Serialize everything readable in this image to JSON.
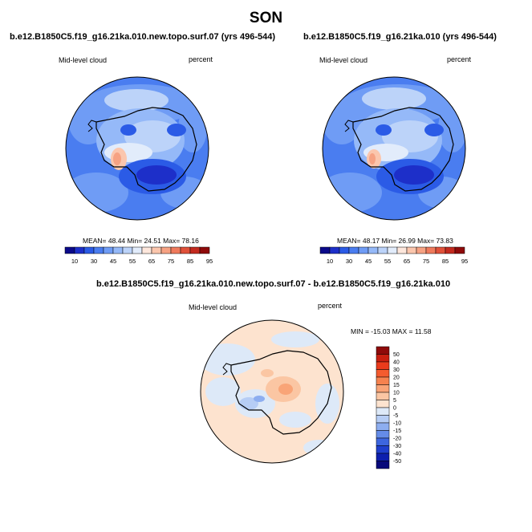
{
  "figure": {
    "season": "SON"
  },
  "panels": [
    {
      "case_title": "b.e12.B1850C5.f19_g16.21ka.010.new.topo.surf.07 (yrs 496-544)",
      "variable": "Mid-level cloud",
      "units": "percent",
      "stats": "MEAN=  48.44   Min=  24.51   Max=  78.16",
      "colorbar": {
        "labels": [
          "10",
          "30",
          "45",
          "55",
          "65",
          "75",
          "85",
          "95"
        ],
        "colors": [
          "#0b0a8a",
          "#1d2fc9",
          "#2b5be6",
          "#4a7df0",
          "#6f9cf5",
          "#95b9f8",
          "#bcd3f9",
          "#e2ecfb",
          "#fde7dc",
          "#fbc6ad",
          "#f6a283",
          "#ef7a5c",
          "#e0513a",
          "#c32a1f",
          "#8f0a0a"
        ]
      }
    },
    {
      "case_title": "b.e12.B1850C5.f19_g16.21ka.010 (yrs 496-544)",
      "variable": "Mid-level cloud",
      "units": "percent",
      "stats": "MEAN=  48.17   Min=  26.99   Max=  73.83",
      "colorbar": {
        "labels": [
          "10",
          "30",
          "45",
          "55",
          "65",
          "75",
          "85",
          "95"
        ],
        "colors": [
          "#0b0a8a",
          "#1d2fc9",
          "#2b5be6",
          "#4a7df0",
          "#6f9cf5",
          "#95b9f8",
          "#bcd3f9",
          "#e2ecfb",
          "#fde7dc",
          "#fbc6ad",
          "#f6a283",
          "#ef7a5c",
          "#e0513a",
          "#c32a1f",
          "#8f0a0a"
        ]
      }
    }
  ],
  "difference": {
    "title": "b.e12.B1850C5.f19_g16.21ka.010.new.topo.surf.07 - b.e12.B1850C5.f19_g16.21ka.010",
    "variable": "Mid-level cloud",
    "units": "percent",
    "stats": "MIN = -15.03 MAX =  11.58",
    "colorbar": {
      "labels": [
        "50",
        "40",
        "30",
        "20",
        "15",
        "10",
        "5",
        "0",
        "-5",
        "-10",
        "-15",
        "-20",
        "-30",
        "-40",
        "-50"
      ],
      "colors": [
        "#8f0a0a",
        "#c91f10",
        "#ea3b1c",
        "#f45b2e",
        "#f6824f",
        "#f9a477",
        "#fbc6a3",
        "#fde3cf",
        "#dde9f8",
        "#b6cdf5",
        "#8daef0",
        "#658ce8",
        "#3d66df",
        "#1f3fcd",
        "#0d1fae",
        "#07097a"
      ]
    }
  }
}
